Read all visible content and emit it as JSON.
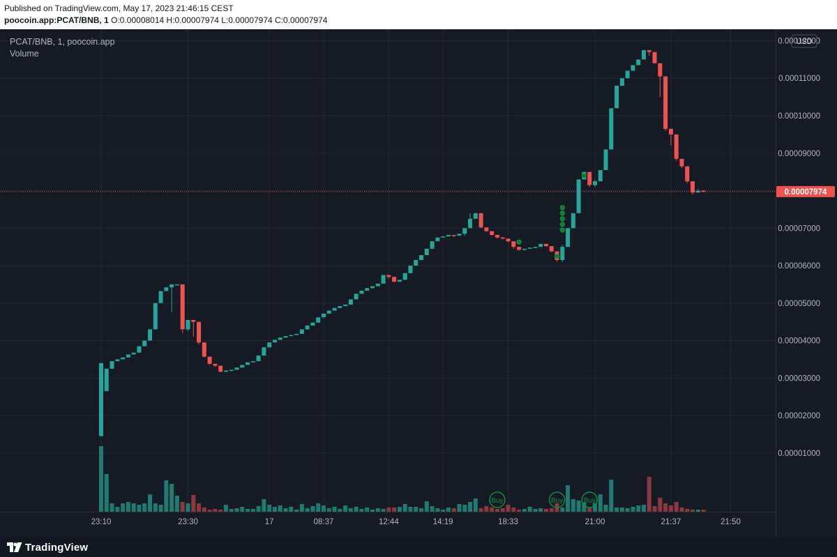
{
  "published": "Published on TradingView.com, May 17, 2023 21:46:15 CEST",
  "symbol_line": {
    "symbol": "poocoin.app:PCAT/BNB, 1",
    "open": "O:0.00008014",
    "high": "H:0.00007974",
    "low": "L:0.00007974",
    "close": "C:0.00007974"
  },
  "legend": {
    "title": "PCAT/BNB, 1, poocoin.app",
    "volume": "Volume"
  },
  "currency": "USD",
  "footer_brand": "TradingView",
  "colors": {
    "up": "#26a69a",
    "down": "#ef5350",
    "vol_up": "#1f7a71",
    "vol_down": "#8a3a3c",
    "signal": "#0e8c3c",
    "bg": "#161a25"
  },
  "chart_data": {
    "type": "candlestick",
    "y_ticks": [
      "0.00001000",
      "0.00002000",
      "0.00003000",
      "0.00004000",
      "0.00005000",
      "0.00006000",
      "0.00007000",
      "0.00008000",
      "0.00009000",
      "0.00010000",
      "0.00011000",
      "0.00012000"
    ],
    "x_ticks": [
      {
        "label": "23:10",
        "i": 0
      },
      {
        "label": "23:30",
        "i": 16
      },
      {
        "label": "17",
        "i": 31
      },
      {
        "label": "08:37",
        "i": 41
      },
      {
        "label": "12:44",
        "i": 53
      },
      {
        "label": "14:19",
        "i": 63
      },
      {
        "label": "18:33",
        "i": 75
      },
      {
        "label": "21:00",
        "i": 91
      },
      {
        "label": "21:37",
        "i": 105
      },
      {
        "label": "21:50",
        "i": 116
      }
    ],
    "last_price": "0.00007974",
    "last_value": 7.974e-05,
    "candles": [
      [
        1.45e-05,
        3.4e-05,
        1.45e-05,
        3.4e-05
      ],
      [
        2.65e-05,
        3.25e-05,
        2.65e-05,
        3.25e-05
      ],
      [
        3.25e-05,
        3.45e-05,
        3.25e-05,
        3.45e-05
      ],
      [
        3.45e-05,
        3.5e-05,
        3.45e-05,
        3.5e-05
      ],
      [
        3.5e-05,
        3.55e-05,
        3.5e-05,
        3.55e-05
      ],
      [
        3.55e-05,
        3.63e-05,
        3.55e-05,
        3.63e-05
      ],
      [
        3.63e-05,
        3.68e-05,
        3.63e-05,
        3.68e-05
      ],
      [
        3.68e-05,
        3.85e-05,
        3.68e-05,
        3.85e-05
      ],
      [
        3.85e-05,
        4e-05,
        3.85e-05,
        4e-05
      ],
      [
        4e-05,
        4.3e-05,
        4e-05,
        4.3e-05
      ],
      [
        4.3e-05,
        5e-05,
        4.3e-05,
        5e-05
      ],
      [
        5e-05,
        5.32e-05,
        5e-05,
        5.32e-05
      ],
      [
        5.32e-05,
        5.42e-05,
        5.32e-05,
        5.42e-05
      ],
      [
        5.42e-05,
        5.5e-05,
        4.75e-05,
        5.5e-05
      ],
      [
        5.5e-05,
        5.5e-05,
        5.5e-05,
        5.5e-05
      ],
      [
        5.5e-05,
        5.5e-05,
        4.2e-05,
        4.3e-05
      ],
      [
        4.3e-05,
        4.55e-05,
        4.25e-05,
        4.55e-05
      ],
      [
        4.55e-05,
        4.55e-05,
        4.1e-05,
        4.5e-05
      ],
      [
        4.5e-05,
        4.5e-05,
        3.9e-05,
        3.95e-05
      ],
      [
        3.95e-05,
        3.95e-05,
        3.55e-05,
        3.57e-05
      ],
      [
        3.57e-05,
        3.57e-05,
        3.35e-05,
        3.38e-05
      ],
      [
        3.38e-05,
        3.38e-05,
        3.3e-05,
        3.33e-05
      ],
      [
        3.33e-05,
        3.33e-05,
        3.15e-05,
        3.17e-05
      ],
      [
        3.17e-05,
        3.2e-05,
        3.15e-05,
        3.2e-05
      ],
      [
        3.2e-05,
        3.22e-05,
        3.18e-05,
        3.22e-05
      ],
      [
        3.22e-05,
        3.28e-05,
        3.22e-05,
        3.28e-05
      ],
      [
        3.28e-05,
        3.35e-05,
        3.28e-05,
        3.35e-05
      ],
      [
        3.35e-05,
        3.42e-05,
        3.35e-05,
        3.42e-05
      ],
      [
        3.42e-05,
        3.45e-05,
        3.42e-05,
        3.45e-05
      ],
      [
        3.45e-05,
        3.6e-05,
        3.45e-05,
        3.6e-05
      ],
      [
        3.6e-05,
        3.82e-05,
        3.6e-05,
        3.82e-05
      ],
      [
        3.82e-05,
        3.95e-05,
        3.82e-05,
        3.95e-05
      ],
      [
        3.95e-05,
        4.02e-05,
        3.95e-05,
        4.02e-05
      ],
      [
        4.02e-05,
        4.08e-05,
        4.02e-05,
        4.08e-05
      ],
      [
        4.08e-05,
        4.12e-05,
        4.08e-05,
        4.12e-05
      ],
      [
        4.12e-05,
        4.15e-05,
        4.12e-05,
        4.15e-05
      ],
      [
        4.15e-05,
        4.18e-05,
        4.15e-05,
        4.18e-05
      ],
      [
        4.18e-05,
        4.3e-05,
        4.18e-05,
        4.3e-05
      ],
      [
        4.3e-05,
        4.4e-05,
        4.3e-05,
        4.4e-05
      ],
      [
        4.4e-05,
        4.48e-05,
        4.4e-05,
        4.48e-05
      ],
      [
        4.48e-05,
        4.62e-05,
        4.48e-05,
        4.62e-05
      ],
      [
        4.62e-05,
        4.72e-05,
        4.62e-05,
        4.72e-05
      ],
      [
        4.72e-05,
        4.8e-05,
        4.72e-05,
        4.8e-05
      ],
      [
        4.8e-05,
        4.87e-05,
        4.8e-05,
        4.87e-05
      ],
      [
        4.87e-05,
        4.92e-05,
        4.87e-05,
        4.92e-05
      ],
      [
        4.92e-05,
        4.96e-05,
        4.92e-05,
        4.96e-05
      ],
      [
        4.96e-05,
        5.1e-05,
        4.96e-05,
        5.1e-05
      ],
      [
        5.1e-05,
        5.25e-05,
        5.1e-05,
        5.25e-05
      ],
      [
        5.25e-05,
        5.33e-05,
        5.25e-05,
        5.33e-05
      ],
      [
        5.33e-05,
        5.4e-05,
        5.33e-05,
        5.4e-05
      ],
      [
        5.4e-05,
        5.45e-05,
        5.4e-05,
        5.45e-05
      ],
      [
        5.45e-05,
        5.52e-05,
        5.45e-05,
        5.52e-05
      ],
      [
        5.52e-05,
        5.75e-05,
        5.52e-05,
        5.75e-05
      ],
      [
        5.75e-05,
        5.75e-05,
        5.65e-05,
        5.7e-05
      ],
      [
        5.7e-05,
        5.7e-05,
        5.55e-05,
        5.57e-05
      ],
      [
        5.57e-05,
        5.62e-05,
        5.57e-05,
        5.62e-05
      ],
      [
        5.62e-05,
        5.8e-05,
        5.62e-05,
        5.8e-05
      ],
      [
        5.8e-05,
        6e-05,
        5.8e-05,
        6e-05
      ],
      [
        6e-05,
        6.15e-05,
        6e-05,
        6.15e-05
      ],
      [
        6.15e-05,
        6.28e-05,
        6.15e-05,
        6.28e-05
      ],
      [
        6.28e-05,
        6.45e-05,
        6.28e-05,
        6.45e-05
      ],
      [
        6.45e-05,
        6.65e-05,
        6.45e-05,
        6.65e-05
      ],
      [
        6.65e-05,
        6.75e-05,
        6.65e-05,
        6.75e-05
      ],
      [
        6.75e-05,
        6.78e-05,
        6.75e-05,
        6.78e-05
      ],
      [
        6.78e-05,
        6.82e-05,
        6.78e-05,
        6.82e-05
      ],
      [
        6.82e-05,
        6.82e-05,
        6.76e-05,
        6.8e-05
      ],
      [
        6.8e-05,
        6.85e-05,
        6.8e-05,
        6.85e-05
      ],
      [
        6.85e-05,
        7e-05,
        6.8e-05,
        7e-05
      ],
      [
        7e-05,
        7.4e-05,
        7e-05,
        7.25e-05
      ],
      [
        7.25e-05,
        7.4e-05,
        7.25e-05,
        7.4e-05
      ],
      [
        7.4e-05,
        7.4e-05,
        7e-05,
        7.02e-05
      ],
      [
        7.02e-05,
        7.02e-05,
        6.9e-05,
        6.92e-05
      ],
      [
        6.92e-05,
        6.92e-05,
        6.8e-05,
        6.82e-05
      ],
      [
        6.82e-05,
        6.82e-05,
        6.72e-05,
        6.75e-05
      ],
      [
        6.75e-05,
        6.77e-05,
        6.7e-05,
        6.72e-05
      ],
      [
        6.72e-05,
        6.72e-05,
        6.62e-05,
        6.65e-05
      ],
      [
        6.65e-05,
        6.65e-05,
        6.45e-05,
        6.5e-05
      ],
      [
        6.5e-05,
        6.5e-05,
        6.4e-05,
        6.42e-05
      ],
      [
        6.42e-05,
        6.45e-05,
        6.4e-05,
        6.45e-05
      ],
      [
        6.45e-05,
        6.48e-05,
        6.45e-05,
        6.48e-05
      ],
      [
        6.48e-05,
        6.5e-05,
        6.46e-05,
        6.5e-05
      ],
      [
        6.5e-05,
        6.58e-05,
        6.5e-05,
        6.58e-05
      ],
      [
        6.58e-05,
        6.58e-05,
        6.5e-05,
        6.52e-05
      ],
      [
        6.52e-05,
        6.52e-05,
        6.35e-05,
        6.38e-05
      ],
      [
        6.38e-05,
        6.38e-05,
        6.1e-05,
        6.15e-05
      ],
      [
        6.15e-05,
        6.55e-05,
        6.1e-05,
        6.5e-05
      ],
      [
        6.5e-05,
        7e-05,
        6.5e-05,
        7e-05
      ],
      [
        7e-05,
        7.4e-05,
        7e-05,
        7.4e-05
      ],
      [
        7.4e-05,
        8.3e-05,
        7.4e-05,
        8.3e-05
      ],
      [
        8.3e-05,
        8.5e-05,
        8.3e-05,
        8.5e-05
      ],
      [
        8.5e-05,
        8.5e-05,
        8.1e-05,
        8.15e-05
      ],
      [
        8.15e-05,
        8.3e-05,
        8.1e-05,
        8.25e-05
      ],
      [
        8.25e-05,
        8.55e-05,
        8.25e-05,
        8.55e-05
      ],
      [
        8.55e-05,
        9.1e-05,
        8.55e-05,
        9.1e-05
      ],
      [
        9.1e-05,
        0.000102,
        9.1e-05,
        0.000102
      ],
      [
        0.000102,
        0.000108,
        0.000102,
        0.000108
      ],
      [
        0.000108,
        0.00011,
        0.000108,
        0.00011
      ],
      [
        0.00011,
        0.000112,
        0.00011,
        0.000112
      ],
      [
        0.000112,
        0.0001135,
        0.000112,
        0.0001135
      ],
      [
        0.0001135,
        0.000115,
        0.0001135,
        0.000115
      ],
      [
        0.000115,
        0.0001175,
        0.000115,
        0.0001175
      ],
      [
        0.0001175,
        0.0001175,
        0.000116,
        0.000117
      ],
      [
        0.000117,
        0.000117,
        0.000114,
        0.000114
      ],
      [
        0.000114,
        0.000114,
        0.000105,
        0.0001105
      ],
      [
        0.0001105,
        0.0001105,
        9.6e-05,
        9.65e-05
      ],
      [
        9.65e-05,
        9.65e-05,
        9.2e-05,
        9.5e-05
      ],
      [
        9.5e-05,
        9.5e-05,
        8.8e-05,
        8.85e-05
      ],
      [
        8.85e-05,
        8.85e-05,
        8.6e-05,
        8.65e-05
      ],
      [
        8.65e-05,
        8.65e-05,
        8.2e-05,
        8.25e-05
      ],
      [
        8.25e-05,
        8.25e-05,
        7.9e-05,
        7.95e-05
      ],
      [
        7.95e-05,
        8.05e-05,
        7.95e-05,
        8e-05
      ],
      [
        8e-05,
        8.01e-05,
        7.95e-05,
        7.97e-05
      ]
    ],
    "volume_fraction": [
      0.94,
      0.54,
      0.12,
      0.07,
      0.12,
      0.14,
      0.12,
      0.1,
      0.12,
      0.25,
      0.12,
      0.1,
      0.45,
      0.4,
      0.23,
      0.14,
      0.12,
      0.24,
      0.12,
      0.06,
      0.03,
      0.04,
      0.03,
      0.1,
      0.04,
      0.05,
      0.07,
      0.04,
      0.04,
      0.08,
      0.18,
      0.1,
      0.07,
      0.09,
      0.05,
      0.07,
      0.03,
      0.11,
      0.05,
      0.08,
      0.12,
      0.09,
      0.05,
      0.07,
      0.04,
      0.09,
      0.05,
      0.07,
      0.04,
      0.06,
      0.03,
      0.05,
      0.04,
      0.06,
      0.06,
      0.07,
      0.11,
      0.07,
      0.07,
      0.05,
      0.15,
      0.08,
      0.05,
      0.03,
      0.06,
      0.05,
      0.11,
      0.1,
      0.14,
      0.19,
      0.05,
      0.08,
      0.06,
      0.04,
      0.05,
      0.1,
      0.06,
      0.03,
      0.04,
      0.07,
      0.04,
      0.05,
      0.04,
      0.05,
      0.12,
      0.06,
      0.38,
      0.18,
      0.16,
      0.13,
      0.06,
      0.12,
      0.25,
      0.1,
      0.46,
      0.06,
      0.06,
      0.05,
      0.07,
      0.09,
      0.1,
      0.5,
      0.08,
      0.2,
      0.12,
      0.09,
      0.14,
      0.06,
      0.04,
      0.03,
      0.03,
      0.03
    ],
    "buy_signals": [
      {
        "i": 73,
        "label": "Buy"
      },
      {
        "i": 84,
        "label": "Buy"
      },
      {
        "i": 90,
        "label": "Buy"
      }
    ],
    "dots": [
      {
        "i": 77,
        "price": 6.63e-05
      },
      {
        "i": 84,
        "price": 6.25e-05
      },
      {
        "i": 85,
        "price": 6.95e-05
      },
      {
        "i": 85,
        "price": 7.1e-05
      },
      {
        "i": 85,
        "price": 7.25e-05
      },
      {
        "i": 85,
        "price": 7.4e-05
      },
      {
        "i": 85,
        "price": 7.55e-05
      },
      {
        "i": 89,
        "price": 8.4e-05
      }
    ]
  }
}
